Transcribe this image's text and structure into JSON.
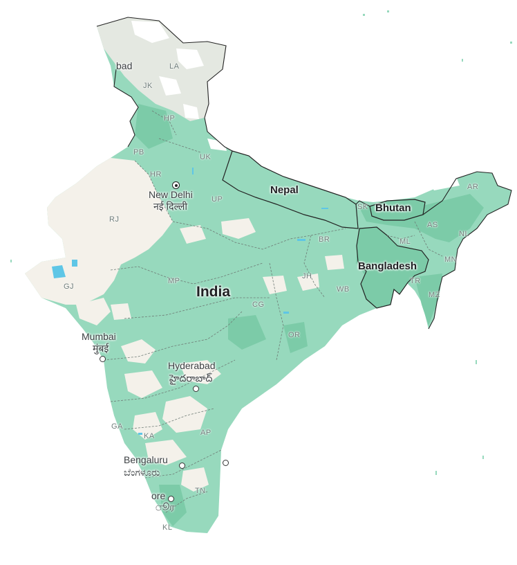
{
  "colors": {
    "vegetation": "#97d9bd",
    "dense_vegetation": "#7ccba8",
    "arid": "#f4f1ea",
    "snow": "#ffffff",
    "mountain": "#e4e8e1",
    "water": "#5ec6e6",
    "border": "#222222",
    "state_border": "#6d7a74"
  },
  "country": {
    "name": "India"
  },
  "neighbors": {
    "nepal": "Nepal",
    "bhutan": "Bhutan",
    "bangladesh": "Bangladesh"
  },
  "cities": {
    "new_delhi": {
      "name": "New Delhi",
      "native": "नई दिल्ली"
    },
    "mumbai": {
      "name": "Mumbai",
      "native": "मुंबई"
    },
    "hyderabad": {
      "name": "Hyderabad",
      "native": "హైదరాబాద్"
    },
    "bengaluru": {
      "name": "Bengaluru",
      "native": "ಬೆಂಗಳೂರು"
    },
    "chennai_partial": {
      "name": "ore",
      "native": "ூர"
    },
    "islamabad_partial": {
      "name": "bad"
    }
  },
  "states": {
    "LA": "LA",
    "JK": "JK",
    "HP": "HP",
    "PB": "PB",
    "HR": "HR",
    "UK": "UK",
    "UP": "UP",
    "RJ": "RJ",
    "GJ": "GJ",
    "MP": "MP",
    "BR": "BR",
    "JH": "JH",
    "WB": "WB",
    "CG": "CG",
    "OR": "OR",
    "GA": "GA",
    "KA": "KA",
    "AP": "AP",
    "TN": "TN",
    "KL": "KL",
    "SK": "SK",
    "AR": "AR",
    "AS": "AS",
    "NL": "NL",
    "ML": "ML",
    "MN": "MN",
    "TR": "TR",
    "MZ": "MZ"
  }
}
